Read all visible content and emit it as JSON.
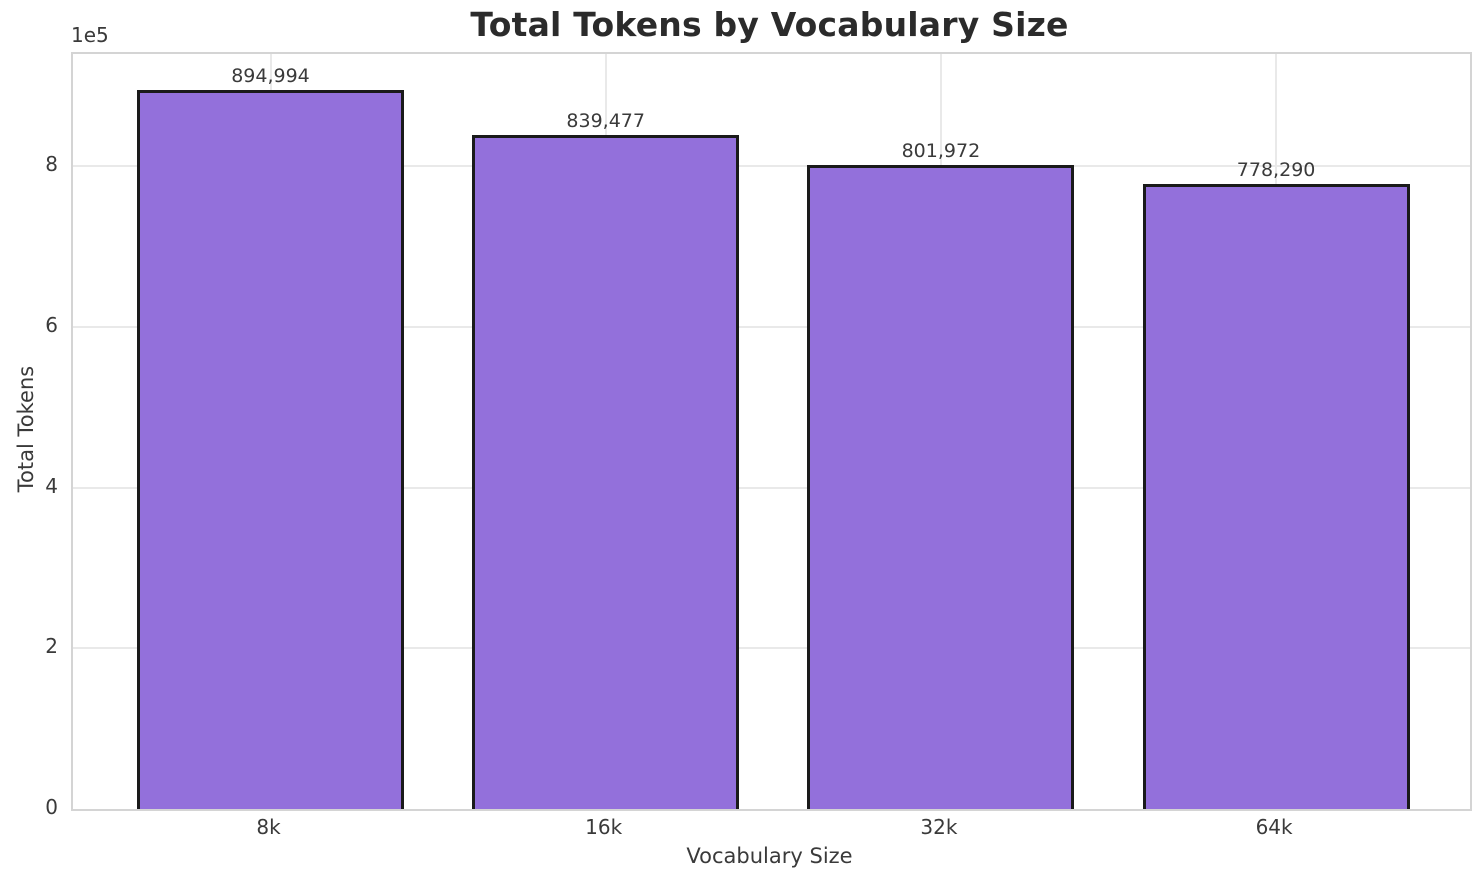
{
  "chart_data": {
    "type": "bar",
    "title": "Total Tokens by Vocabulary Size",
    "xlabel": "Vocabulary Size",
    "ylabel": "Total Tokens",
    "categories": [
      "8k",
      "16k",
      "32k",
      "64k"
    ],
    "values": [
      894994,
      839477,
      801972,
      778290
    ],
    "bar_value_labels": [
      "894,994",
      "839,477",
      "801,972",
      "778,290"
    ],
    "y_tick_labels": [
      "0",
      "2",
      "4",
      "6",
      "8"
    ],
    "y_tick_values": [
      0,
      200000,
      400000,
      600000,
      800000
    ],
    "y_offset_text": "1e5",
    "ylim": [
      0,
      939744
    ],
    "grid": true,
    "legend_position": "none",
    "colors": {
      "bar_fill": "#9370db",
      "bar_edge": "#1a1a1a",
      "grid": "#e9e9e9",
      "spine": "#d4d4d4",
      "title_text": "#2b2b2b",
      "label_text": "#3a3a3a"
    }
  }
}
